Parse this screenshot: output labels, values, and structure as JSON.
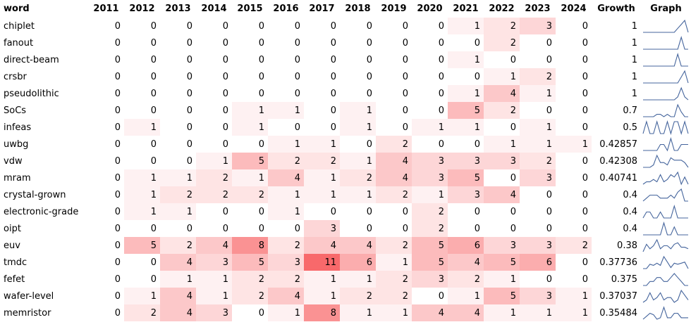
{
  "table": {
    "headers": [
      "word",
      "2011",
      "2012",
      "2013",
      "2014",
      "2015",
      "2016",
      "2017",
      "2018",
      "2019",
      "2020",
      "2021",
      "2022",
      "2023",
      "2024",
      "Growth",
      "Graph"
    ],
    "rows": [
      {
        "word": "chiplet",
        "counts": [
          0,
          0,
          0,
          0,
          0,
          0,
          0,
          0,
          0,
          0,
          1,
          2,
          3,
          0
        ],
        "growth": 1
      },
      {
        "word": "fanout",
        "counts": [
          0,
          0,
          0,
          0,
          0,
          0,
          0,
          0,
          0,
          0,
          0,
          2,
          0,
          0
        ],
        "growth": 1
      },
      {
        "word": "direct-beam",
        "counts": [
          0,
          0,
          0,
          0,
          0,
          0,
          0,
          0,
          0,
          0,
          1,
          0,
          0,
          0
        ],
        "growth": 1
      },
      {
        "word": "crsbr",
        "counts": [
          0,
          0,
          0,
          0,
          0,
          0,
          0,
          0,
          0,
          0,
          0,
          1,
          2,
          0
        ],
        "growth": 1
      },
      {
        "word": "pseudolithic",
        "counts": [
          0,
          0,
          0,
          0,
          0,
          0,
          0,
          0,
          0,
          0,
          1,
          4,
          1,
          0
        ],
        "growth": 1
      },
      {
        "word": "SoCs",
        "counts": [
          0,
          0,
          0,
          0,
          1,
          1,
          0,
          1,
          0,
          0,
          5,
          2,
          0,
          0
        ],
        "growth": 0.7
      },
      {
        "word": "infeas",
        "counts": [
          0,
          1,
          0,
          0,
          1,
          0,
          0,
          1,
          0,
          1,
          1,
          0,
          1,
          0
        ],
        "growth": 0.5
      },
      {
        "word": "uwbg",
        "counts": [
          0,
          0,
          0,
          0,
          0,
          1,
          1,
          0,
          2,
          0,
          0,
          1,
          1,
          1
        ],
        "growth": 0.42857
      },
      {
        "word": "vdw",
        "counts": [
          0,
          0,
          0,
          1,
          5,
          2,
          2,
          1,
          4,
          3,
          3,
          3,
          2,
          0
        ],
        "growth": 0.42308
      },
      {
        "word": "mram",
        "counts": [
          0,
          1,
          1,
          2,
          1,
          4,
          1,
          2,
          4,
          3,
          5,
          0,
          3,
          0
        ],
        "growth": 0.40741
      },
      {
        "word": "crystal-grown",
        "counts": [
          0,
          1,
          2,
          2,
          2,
          1,
          1,
          1,
          2,
          1,
          3,
          4,
          0,
          0
        ],
        "growth": 0.4
      },
      {
        "word": "electronic-grade",
        "counts": [
          0,
          1,
          1,
          0,
          0,
          1,
          0,
          0,
          0,
          2,
          0,
          0,
          0,
          0
        ],
        "growth": 0.4
      },
      {
        "word": "oipt",
        "counts": [
          0,
          0,
          0,
          0,
          0,
          0,
          3,
          0,
          0,
          2,
          0,
          0,
          0,
          0
        ],
        "growth": 0.4
      },
      {
        "word": "euv",
        "counts": [
          0,
          5,
          2,
          4,
          8,
          2,
          4,
          4,
          2,
          5,
          6,
          3,
          3,
          2
        ],
        "growth": 0.38
      },
      {
        "word": "tmdc",
        "counts": [
          0,
          0,
          4,
          3,
          5,
          3,
          11,
          6,
          1,
          5,
          4,
          5,
          6,
          0
        ],
        "growth": 0.37736
      },
      {
        "word": "fefet",
        "counts": [
          0,
          0,
          1,
          1,
          2,
          2,
          1,
          1,
          2,
          3,
          2,
          1,
          0,
          0
        ],
        "growth": 0.375
      },
      {
        "word": "wafer-level",
        "counts": [
          0,
          1,
          4,
          1,
          2,
          4,
          1,
          2,
          2,
          0,
          1,
          5,
          3,
          1
        ],
        "growth": 0.37037
      },
      {
        "word": "memristor",
        "counts": [
          0,
          2,
          4,
          3,
          0,
          1,
          8,
          1,
          1,
          4,
          4,
          1,
          1,
          1
        ],
        "growth": 0.35484
      }
    ]
  }
}
